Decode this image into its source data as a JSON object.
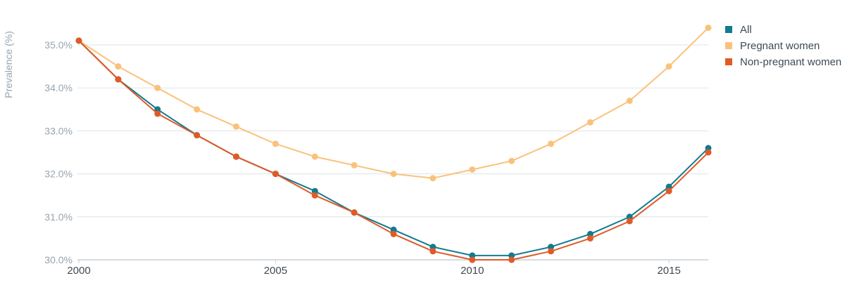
{
  "chart_data": {
    "type": "line",
    "title": "",
    "xlabel": "",
    "ylabel": "Prevalence (%)",
    "x": [
      2000,
      2001,
      2002,
      2003,
      2004,
      2005,
      2006,
      2007,
      2008,
      2009,
      2010,
      2011,
      2012,
      2013,
      2014,
      2015,
      2016
    ],
    "xlim": [
      2000,
      2016
    ],
    "ylim": [
      30.0,
      35.5
    ],
    "x_ticks": [
      2000,
      2005,
      2010,
      2015
    ],
    "x_tick_labels": [
      "2000",
      "2005",
      "2010",
      "2015"
    ],
    "y_ticks": [
      30.0,
      31.0,
      32.0,
      33.0,
      34.0,
      35.0
    ],
    "y_tick_labels": [
      "30.0%",
      "31.0%",
      "32.0%",
      "33.0%",
      "34.0%",
      "35.0%"
    ],
    "grid": true,
    "legend_position": "top-right",
    "series": [
      {
        "name": "All",
        "color": "#137a8f",
        "values": [
          35.1,
          34.2,
          33.5,
          32.9,
          32.4,
          32.0,
          31.6,
          31.1,
          30.7,
          30.3,
          30.1,
          30.1,
          30.3,
          30.6,
          31.0,
          31.7,
          32.6
        ]
      },
      {
        "name": "Pregnant women",
        "color": "#f9c27c",
        "values": [
          35.1,
          34.5,
          34.0,
          33.5,
          33.1,
          32.7,
          32.4,
          32.2,
          32.0,
          31.9,
          32.1,
          32.3,
          32.7,
          33.2,
          33.7,
          34.5,
          35.4
        ]
      },
      {
        "name": "Non-pregnant women",
        "color": "#e05a27",
        "values": [
          35.1,
          34.2,
          33.4,
          32.9,
          32.4,
          32.0,
          31.5,
          31.1,
          30.6,
          30.2,
          30.0,
          30.0,
          30.2,
          30.5,
          30.9,
          31.6,
          32.5
        ]
      }
    ]
  }
}
